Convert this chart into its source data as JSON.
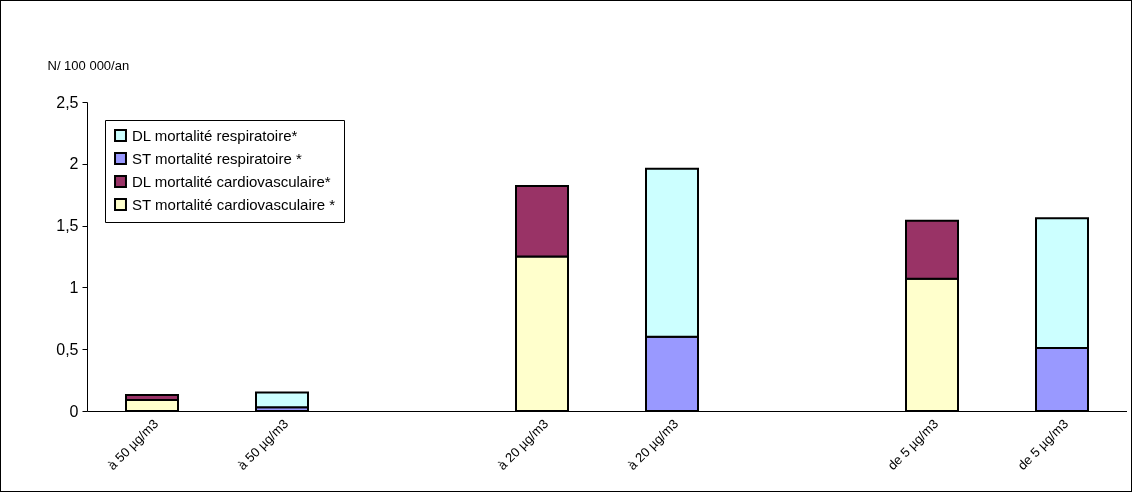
{
  "chart_data": {
    "type": "bar",
    "stacked": true,
    "ylabel": "N/ 100 000/an",
    "categories": [
      "à 50 µg/m3",
      "à 50 µg/m3",
      null,
      "à 20 µg/m3",
      "à 20 µg/m3",
      null,
      "de 5 µg/m3",
      "de 5 µg/m3"
    ],
    "series": [
      {
        "name": "ST mortalité cardiovasculaire *",
        "color": "#ffffcc",
        "values": [
          0.09,
          null,
          null,
          1.25,
          null,
          null,
          1.07,
          null
        ]
      },
      {
        "name": "DL mortalité cardiovasculaire*",
        "color": "#993366",
        "values": [
          0.04,
          null,
          null,
          0.57,
          null,
          null,
          0.47,
          null
        ]
      },
      {
        "name": "ST mortalité respiratoire *",
        "color": "#9999ff",
        "values": [
          null,
          0.03,
          null,
          null,
          0.6,
          null,
          null,
          0.51
        ]
      },
      {
        "name": "DL  mortalité respiratoire*",
        "color": "#ccffff",
        "values": [
          null,
          0.12,
          null,
          null,
          1.36,
          null,
          null,
          1.05
        ]
      }
    ],
    "ylim": [
      0,
      2.5
    ],
    "yticks": [
      0,
      {
        "value": 0.5,
        "label": "0,5"
      },
      1,
      {
        "value": 1.5,
        "label": "1,5"
      },
      2,
      {
        "value": 2.5,
        "label": "2,5"
      }
    ],
    "legend": "top left",
    "grid": false
  }
}
